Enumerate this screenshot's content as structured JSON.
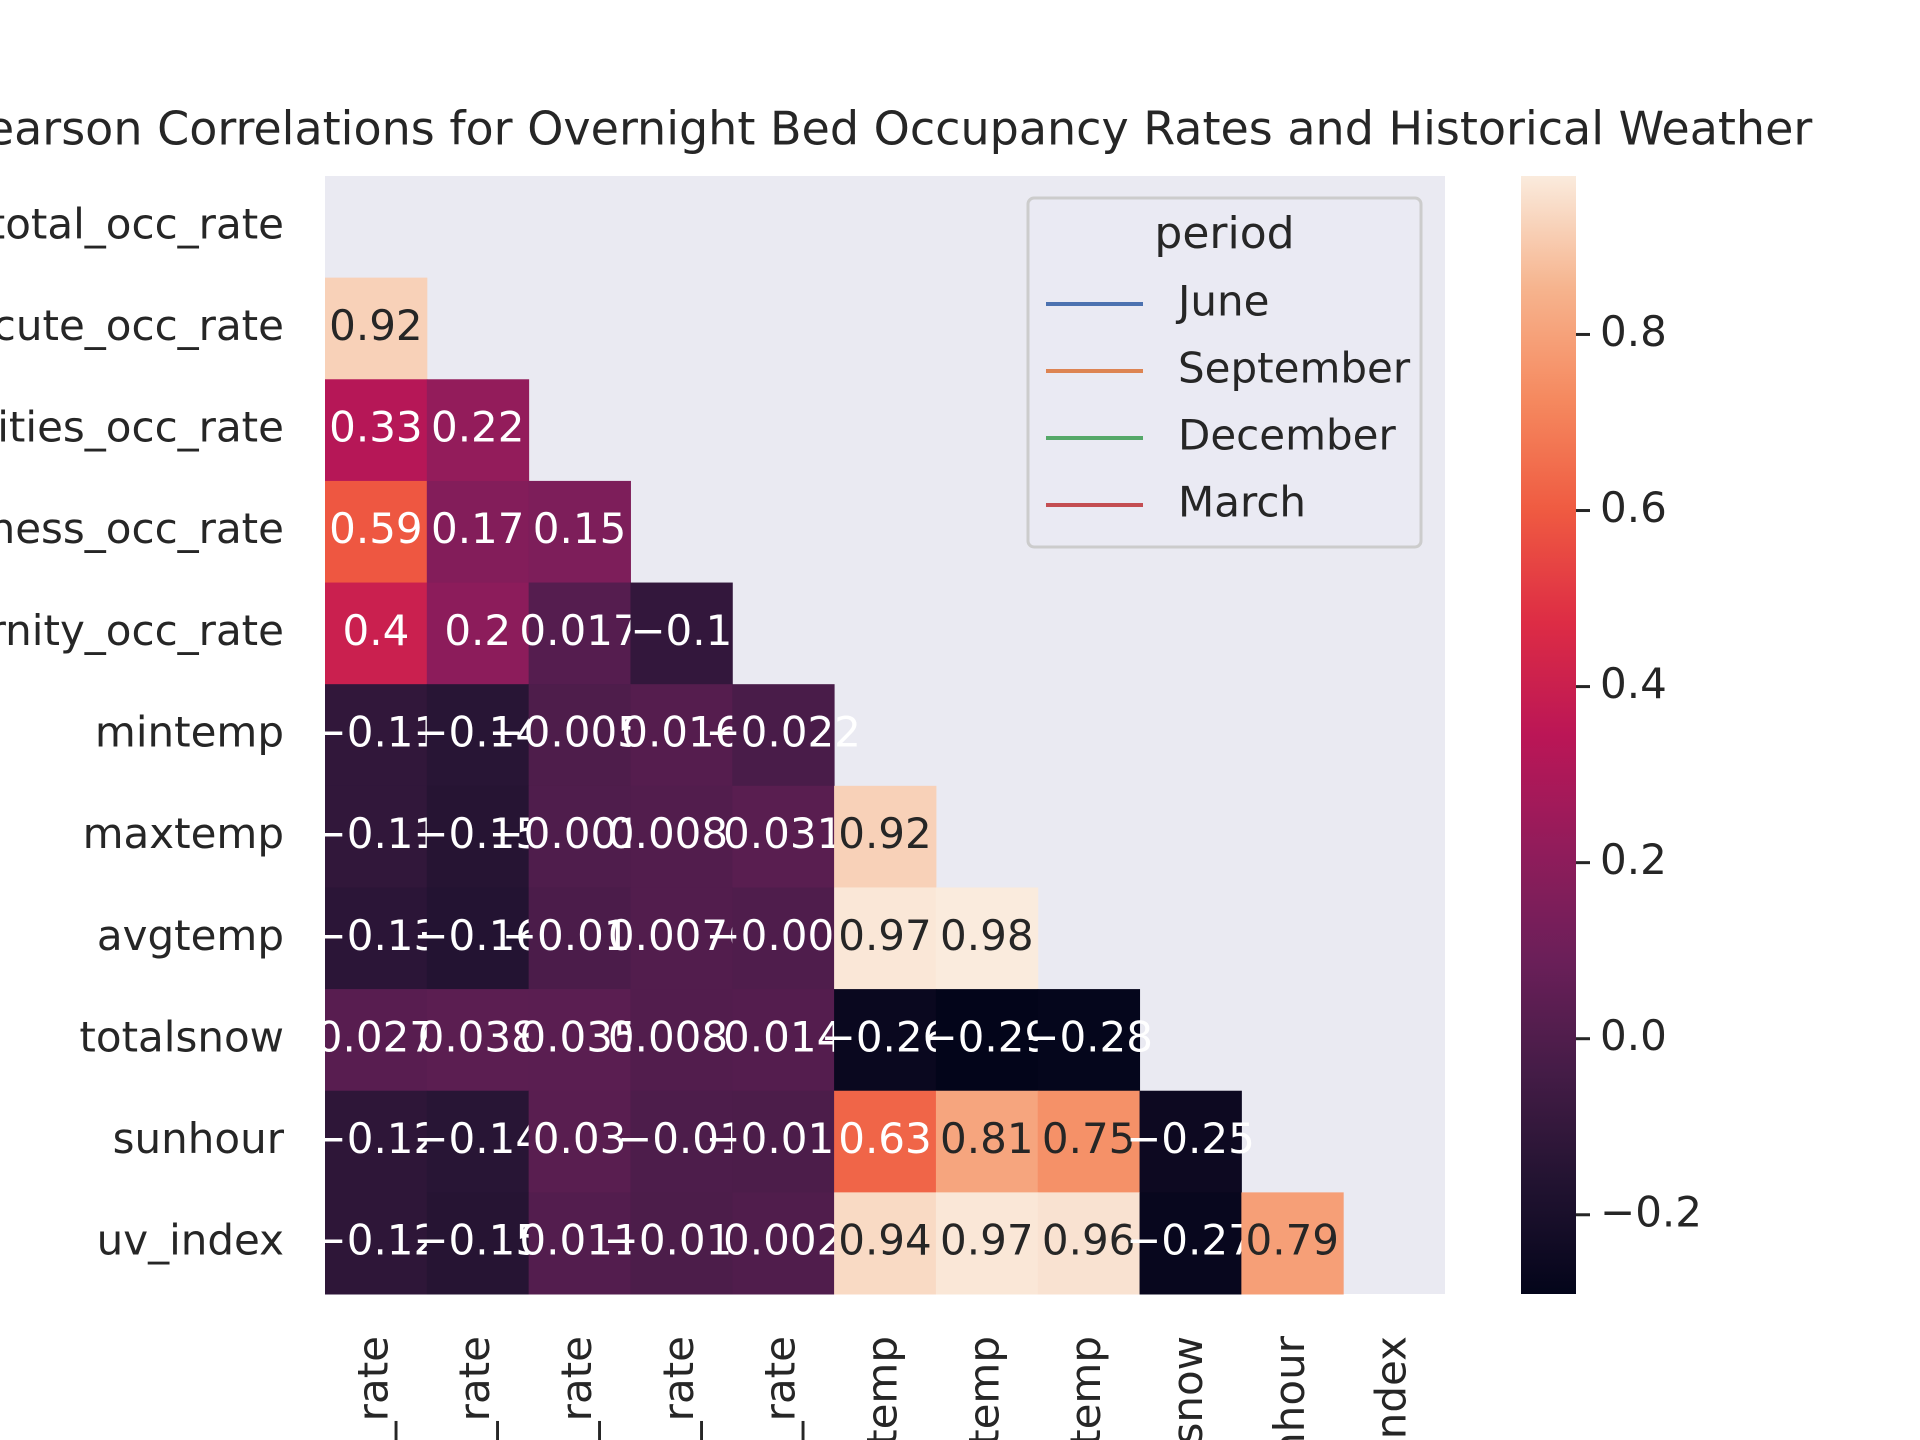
{
  "chart_data": {
    "type": "heatmap",
    "title": "Pearson Correlations for Overnight Bed Occupancy Rates and Historical Weather",
    "row_labels": [
      "total_occ_rate",
      "cute_occ_rate",
      "ities_occ_rate",
      "ness_occ_rate",
      "rnity_occ_rate",
      "mintemp",
      "maxtemp",
      "avgtemp",
      "totalsnow",
      "sunhour",
      "uv_index"
    ],
    "col_labels": [
      "c_rate",
      "c_rate",
      "c_rate",
      "c_rate",
      "c_rate",
      "ntemp",
      "xtemp",
      "gtemp",
      "lsnow",
      "nhour",
      "index"
    ],
    "values": [
      [
        null,
        null,
        null,
        null,
        null,
        null,
        null,
        null,
        null,
        null,
        null
      ],
      [
        0.92,
        null,
        null,
        null,
        null,
        null,
        null,
        null,
        null,
        null,
        null
      ],
      [
        0.33,
        0.22,
        null,
        null,
        null,
        null,
        null,
        null,
        null,
        null,
        null
      ],
      [
        0.59,
        0.17,
        0.15,
        null,
        null,
        null,
        null,
        null,
        null,
        null,
        null
      ],
      [
        0.4,
        0.2,
        0.017,
        -0.1,
        null,
        null,
        null,
        null,
        null,
        null,
        null
      ],
      [
        -0.11,
        -0.14,
        -0.0058,
        0.016,
        -0.022,
        null,
        null,
        null,
        null,
        null,
        null
      ],
      [
        -0.11,
        -0.15,
        -0.0019,
        0.0085,
        0.031,
        0.92,
        null,
        null,
        null,
        null,
        null
      ],
      [
        -0.13,
        -0.16,
        -0.016,
        0.0076,
        -0.002,
        0.97,
        0.98,
        null,
        null,
        null,
        null
      ],
      [
        0.027,
        0.038,
        0.035,
        0.0083,
        0.014,
        -0.26,
        -0.29,
        -0.28,
        null,
        null,
        null
      ],
      [
        -0.12,
        -0.14,
        0.03,
        -0.01,
        -0.012,
        0.63,
        0.81,
        0.75,
        -0.25,
        null,
        null
      ],
      [
        -0.12,
        -0.15,
        0.011,
        -0.013,
        0.002,
        0.94,
        0.97,
        0.96,
        -0.27,
        0.79,
        null
      ]
    ],
    "colormap": "rocket",
    "clim": [
      -0.29,
      0.98
    ],
    "cticks": [
      -0.2,
      0.0,
      0.2,
      0.4,
      0.6,
      0.8
    ],
    "ctick_labels": [
      "−0.2",
      "0.0",
      "0.2",
      "0.4",
      "0.6",
      "0.8"
    ],
    "legend": {
      "title": "period",
      "corner": "upper right",
      "series": [
        {
          "name": "June",
          "color": "#4c72b0"
        },
        {
          "name": "September",
          "color": "#dd8452"
        },
        {
          "name": "December",
          "color": "#55a868"
        },
        {
          "name": "March",
          "color": "#c44e52"
        }
      ]
    }
  }
}
